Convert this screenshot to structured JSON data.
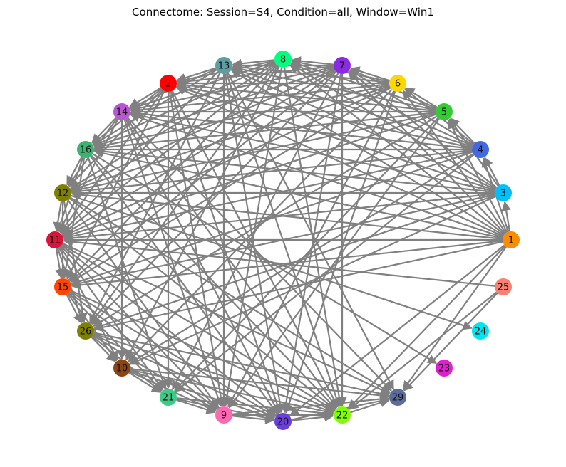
{
  "title": "Connectome: Session=S4, Condition=all, Window=Win1",
  "colors": {
    "edge": "#808080",
    "background": "#ffffff"
  },
  "nodes": [
    {
      "id": "1",
      "label": "1",
      "color": "#ff8c00"
    },
    {
      "id": "3",
      "label": "3",
      "color": "#00bfff"
    },
    {
      "id": "4",
      "label": "4",
      "color": "#4169e1"
    },
    {
      "id": "5",
      "label": "5",
      "color": "#32cd32"
    },
    {
      "id": "6",
      "label": "6",
      "color": "#ffd700"
    },
    {
      "id": "7",
      "label": "7",
      "color": "#8a2be2"
    },
    {
      "id": "8",
      "label": "8",
      "color": "#00ff7f"
    },
    {
      "id": "13",
      "label": "13",
      "color": "#5f9ea0"
    },
    {
      "id": "2",
      "label": "2",
      "color": "#ff0000"
    },
    {
      "id": "14",
      "label": "14",
      "color": "#ba55d3"
    },
    {
      "id": "16",
      "label": "16",
      "color": "#3cb371"
    },
    {
      "id": "12",
      "label": "12",
      "color": "#808000"
    },
    {
      "id": "11",
      "label": "11",
      "color": "#dc143c"
    },
    {
      "id": "15",
      "label": "15",
      "color": "#ff4500"
    },
    {
      "id": "26",
      "label": "26",
      "color": "#808000"
    },
    {
      "id": "10",
      "label": "10",
      "color": "#8b4513"
    },
    {
      "id": "21",
      "label": "21",
      "color": "#3cca85"
    },
    {
      "id": "9",
      "label": "9",
      "color": "#ff69b4"
    },
    {
      "id": "20",
      "label": "20",
      "color": "#6a3fdc"
    },
    {
      "id": "22",
      "label": "22",
      "color": "#7fff00"
    },
    {
      "id": "29",
      "label": "29",
      "color": "#5b6e9b"
    },
    {
      "id": "23",
      "label": "23",
      "color": "#e020d0"
    },
    {
      "id": "24",
      "label": "24",
      "color": "#00e5ee"
    },
    {
      "id": "25",
      "label": "25",
      "color": "#fa8072"
    }
  ],
  "edges": [
    [
      "1",
      "3"
    ],
    [
      "1",
      "4"
    ],
    [
      "1",
      "5"
    ],
    [
      "1",
      "6"
    ],
    [
      "1",
      "7"
    ],
    [
      "1",
      "8"
    ],
    [
      "1",
      "13"
    ],
    [
      "1",
      "2"
    ],
    [
      "1",
      "14"
    ],
    [
      "1",
      "16"
    ],
    [
      "1",
      "12"
    ],
    [
      "1",
      "11"
    ],
    [
      "1",
      "15"
    ],
    [
      "1",
      "26"
    ],
    [
      "1",
      "22"
    ],
    [
      "1",
      "29"
    ],
    [
      "1",
      "20"
    ],
    [
      "3",
      "4"
    ],
    [
      "3",
      "5"
    ],
    [
      "3",
      "7"
    ],
    [
      "3",
      "8"
    ],
    [
      "3",
      "13"
    ],
    [
      "3",
      "2"
    ],
    [
      "3",
      "14"
    ],
    [
      "3",
      "16"
    ],
    [
      "3",
      "12"
    ],
    [
      "3",
      "11"
    ],
    [
      "3",
      "15"
    ],
    [
      "3",
      "26"
    ],
    [
      "4",
      "5"
    ],
    [
      "4",
      "6"
    ],
    [
      "4",
      "7"
    ],
    [
      "4",
      "8"
    ],
    [
      "4",
      "13"
    ],
    [
      "4",
      "2"
    ],
    [
      "4",
      "14"
    ],
    [
      "4",
      "16"
    ],
    [
      "4",
      "12"
    ],
    [
      "4",
      "11"
    ],
    [
      "4",
      "15"
    ],
    [
      "4",
      "10"
    ],
    [
      "5",
      "6"
    ],
    [
      "5",
      "7"
    ],
    [
      "5",
      "8"
    ],
    [
      "5",
      "13"
    ],
    [
      "5",
      "2"
    ],
    [
      "5",
      "14"
    ],
    [
      "5",
      "16"
    ],
    [
      "5",
      "12"
    ],
    [
      "5",
      "11"
    ],
    [
      "5",
      "26"
    ],
    [
      "5",
      "21"
    ],
    [
      "6",
      "7"
    ],
    [
      "6",
      "8"
    ],
    [
      "6",
      "13"
    ],
    [
      "6",
      "2"
    ],
    [
      "6",
      "14"
    ],
    [
      "6",
      "16"
    ],
    [
      "6",
      "12"
    ],
    [
      "6",
      "11"
    ],
    [
      "6",
      "15"
    ],
    [
      "6",
      "10"
    ],
    [
      "6",
      "9"
    ],
    [
      "7",
      "8"
    ],
    [
      "7",
      "13"
    ],
    [
      "7",
      "2"
    ],
    [
      "7",
      "14"
    ],
    [
      "7",
      "16"
    ],
    [
      "7",
      "12"
    ],
    [
      "7",
      "11"
    ],
    [
      "7",
      "15"
    ],
    [
      "7",
      "26"
    ],
    [
      "7",
      "21"
    ],
    [
      "7",
      "20"
    ],
    [
      "8",
      "13"
    ],
    [
      "8",
      "2"
    ],
    [
      "8",
      "14"
    ],
    [
      "8",
      "16"
    ],
    [
      "8",
      "12"
    ],
    [
      "8",
      "11"
    ],
    [
      "8",
      "15"
    ],
    [
      "8",
      "26"
    ],
    [
      "8",
      "10"
    ],
    [
      "8",
      "22"
    ],
    [
      "13",
      "2"
    ],
    [
      "13",
      "14"
    ],
    [
      "13",
      "16"
    ],
    [
      "13",
      "11"
    ],
    [
      "13",
      "26"
    ],
    [
      "13",
      "9"
    ],
    [
      "13",
      "22"
    ],
    [
      "13",
      "29"
    ],
    [
      "2",
      "14"
    ],
    [
      "2",
      "16"
    ],
    [
      "2",
      "12"
    ],
    [
      "2",
      "11"
    ],
    [
      "2",
      "15"
    ],
    [
      "2",
      "21"
    ],
    [
      "2",
      "20"
    ],
    [
      "2",
      "22"
    ],
    [
      "14",
      "16"
    ],
    [
      "14",
      "12"
    ],
    [
      "14",
      "11"
    ],
    [
      "14",
      "10"
    ],
    [
      "14",
      "9"
    ],
    [
      "14",
      "22"
    ],
    [
      "14",
      "29"
    ],
    [
      "16",
      "12"
    ],
    [
      "16",
      "11"
    ],
    [
      "16",
      "15"
    ],
    [
      "16",
      "21"
    ],
    [
      "16",
      "20"
    ],
    [
      "16",
      "22"
    ],
    [
      "16",
      "23"
    ],
    [
      "12",
      "11"
    ],
    [
      "12",
      "15"
    ],
    [
      "12",
      "26"
    ],
    [
      "12",
      "9"
    ],
    [
      "12",
      "22"
    ],
    [
      "12",
      "29"
    ],
    [
      "12",
      "24"
    ],
    [
      "11",
      "15"
    ],
    [
      "11",
      "26"
    ],
    [
      "11",
      "10"
    ],
    [
      "11",
      "21"
    ],
    [
      "11",
      "9"
    ],
    [
      "11",
      "20"
    ],
    [
      "11",
      "22"
    ],
    [
      "11",
      "29"
    ],
    [
      "15",
      "26"
    ],
    [
      "15",
      "10"
    ],
    [
      "15",
      "21"
    ],
    [
      "15",
      "9"
    ],
    [
      "15",
      "20"
    ],
    [
      "15",
      "22"
    ],
    [
      "26",
      "10"
    ],
    [
      "26",
      "21"
    ],
    [
      "26",
      "9"
    ],
    [
      "26",
      "20"
    ],
    [
      "26",
      "22"
    ],
    [
      "26",
      "29"
    ],
    [
      "10",
      "21"
    ],
    [
      "10",
      "9"
    ],
    [
      "10",
      "20"
    ],
    [
      "10",
      "22"
    ],
    [
      "10",
      "29"
    ],
    [
      "21",
      "9"
    ],
    [
      "21",
      "20"
    ],
    [
      "21",
      "22"
    ],
    [
      "9",
      "20"
    ],
    [
      "9",
      "22"
    ],
    [
      "9",
      "29"
    ],
    [
      "20",
      "22"
    ],
    [
      "20",
      "29"
    ],
    [
      "22",
      "29"
    ],
    [
      "25",
      "22"
    ],
    [
      "25",
      "29"
    ],
    [
      "25",
      "11"
    ],
    [
      "3",
      "10"
    ],
    [
      "4",
      "21"
    ],
    [
      "5",
      "9"
    ],
    [
      "7",
      "22"
    ],
    [
      "6",
      "20"
    ],
    [
      "8",
      "9"
    ],
    [
      "13",
      "20"
    ],
    [
      "2",
      "9"
    ],
    [
      "14",
      "20"
    ]
  ]
}
